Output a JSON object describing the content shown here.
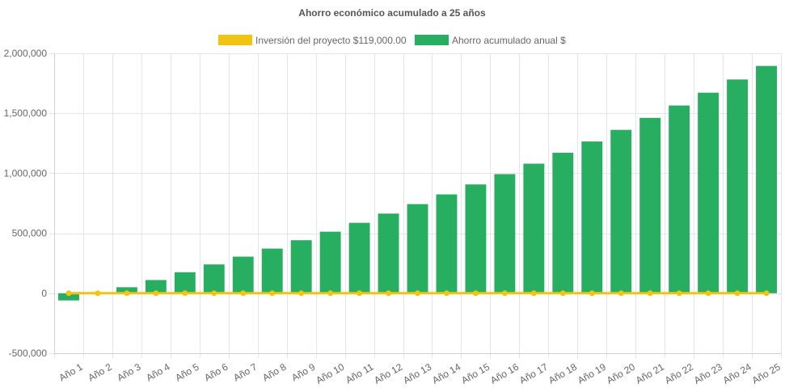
{
  "chart_data": {
    "type": "bar",
    "title": "Ahorro económico acumulado a 25 años",
    "xlabel": "",
    "ylabel": "",
    "ylim": [
      -500000,
      2000000
    ],
    "yticks": [
      -500000,
      0,
      500000,
      1000000,
      1500000,
      2000000
    ],
    "ytick_labels": [
      "-500,000",
      "0",
      "500,000",
      "1,000,000",
      "1,500,000",
      "2,000,000"
    ],
    "grid": true,
    "legend_position": "top",
    "categories": [
      "Año 1",
      "Año 2",
      "Año 3",
      "Año 4",
      "Año 5",
      "Año 6",
      "Año 7",
      "Año 8",
      "Año 9",
      "Año 10",
      "Año 11",
      "Año 12",
      "Año 13",
      "Año 14",
      "Año 15",
      "Año 16",
      "Año 17",
      "Año 18",
      "Año 19",
      "Año 20",
      "Año 21",
      "Año 22",
      "Año 23",
      "Año 24",
      "Año 25"
    ],
    "series": [
      {
        "name": "Inversión del proyecto $119,000.00",
        "type": "line",
        "color": "#f1c40f",
        "values": [
          0,
          0,
          0,
          0,
          0,
          0,
          0,
          0,
          0,
          0,
          0,
          0,
          0,
          0,
          0,
          0,
          0,
          0,
          0,
          0,
          0,
          0,
          0,
          0,
          0
        ]
      },
      {
        "name": "Ahorro acumulado anual $",
        "type": "bar",
        "color": "#27ae60",
        "values": [
          -60000,
          0,
          50000,
          110000,
          175000,
          240000,
          305000,
          372000,
          442000,
          513000,
          587000,
          664000,
          743000,
          824000,
          907000,
          993000,
          1080000,
          1171000,
          1265000,
          1362000,
          1462000,
          1565000,
          1672000,
          1782000,
          1895000
        ]
      }
    ]
  }
}
